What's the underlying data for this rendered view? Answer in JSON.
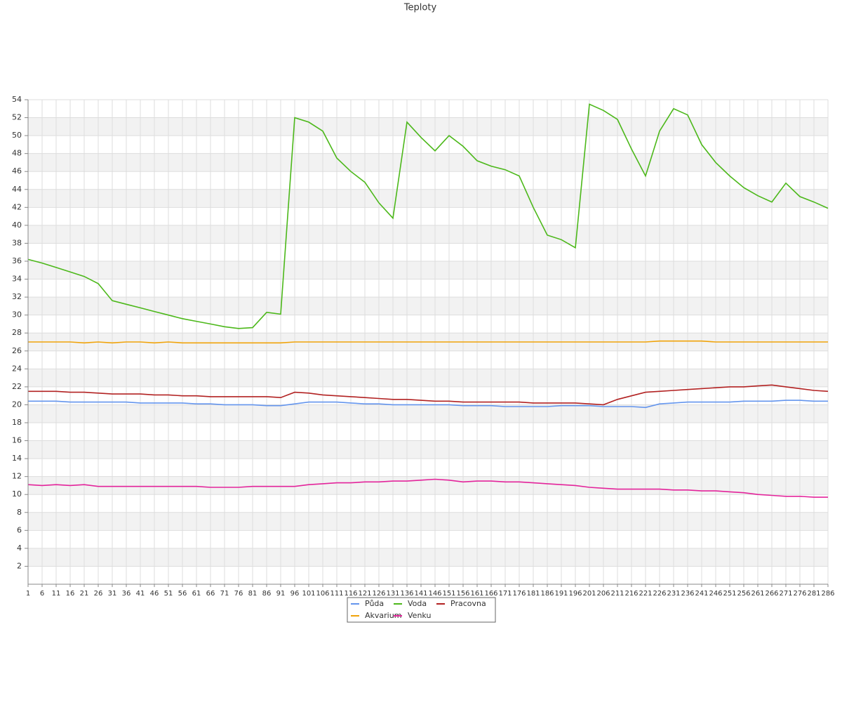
{
  "chart_data": {
    "type": "line",
    "title": "Teploty",
    "x": [
      1,
      6,
      11,
      16,
      21,
      26,
      31,
      36,
      41,
      46,
      51,
      56,
      61,
      66,
      71,
      76,
      81,
      86,
      91,
      96,
      101,
      106,
      111,
      116,
      121,
      126,
      131,
      136,
      141,
      146,
      151,
      156,
      161,
      166,
      171,
      176,
      181,
      186,
      191,
      196,
      201,
      206,
      211,
      216,
      221,
      226,
      231,
      236,
      241,
      246,
      251,
      256,
      261,
      266,
      271,
      276,
      281,
      286
    ],
    "xlim": [
      1,
      286
    ],
    "xticks": [
      1,
      6,
      11,
      16,
      21,
      26,
      31,
      36,
      41,
      46,
      51,
      56,
      61,
      66,
      71,
      76,
      81,
      86,
      91,
      96,
      101,
      106,
      111,
      116,
      121,
      126,
      131,
      136,
      141,
      146,
      151,
      156,
      161,
      166,
      171,
      176,
      181,
      186,
      191,
      196,
      201,
      206,
      211,
      216,
      221,
      226,
      231,
      236,
      241,
      246,
      251,
      256,
      261,
      266,
      271,
      276,
      281,
      286
    ],
    "ylim": [
      0,
      54
    ],
    "yticks": [
      2,
      4,
      6,
      8,
      10,
      12,
      14,
      16,
      18,
      20,
      22,
      24,
      26,
      28,
      30,
      32,
      34,
      36,
      38,
      40,
      42,
      44,
      46,
      48,
      50,
      52,
      54
    ],
    "grid": true,
    "series": [
      {
        "name": "Půda",
        "color": "#6495ed",
        "values": [
          20.4,
          20.4,
          20.4,
          20.3,
          20.3,
          20.3,
          20.3,
          20.3,
          20.2,
          20.2,
          20.2,
          20.2,
          20.1,
          20.1,
          20.0,
          20.0,
          20.0,
          19.9,
          19.9,
          20.1,
          20.3,
          20.3,
          20.3,
          20.2,
          20.1,
          20.1,
          20.0,
          20.0,
          20.0,
          20.0,
          20.0,
          19.9,
          19.9,
          19.9,
          19.8,
          19.8,
          19.8,
          19.8,
          19.9,
          19.9,
          19.9,
          19.8,
          19.8,
          19.8,
          19.7,
          20.1,
          20.2,
          20.3,
          20.3,
          20.3,
          20.3,
          20.4,
          20.4,
          20.4,
          20.5,
          20.5,
          20.4,
          20.4
        ]
      },
      {
        "name": "Voda",
        "color": "#4cb81a",
        "values": [
          36.2,
          35.8,
          35.3,
          34.8,
          34.3,
          33.5,
          31.6,
          31.2,
          30.8,
          30.4,
          30.0,
          29.6,
          29.3,
          29.0,
          28.7,
          28.5,
          28.6,
          30.3,
          30.1,
          52.0,
          51.5,
          50.5,
          47.5,
          46.0,
          44.8,
          42.5,
          40.8,
          51.5,
          49.8,
          48.3,
          50.0,
          48.8,
          47.2,
          46.6,
          46.2,
          45.5,
          42.0,
          38.9,
          38.4,
          37.5,
          53.5,
          52.8,
          51.8,
          48.5,
          45.5,
          50.5,
          53.0,
          52.3,
          49.0,
          47.0,
          45.5,
          44.2,
          43.3,
          42.6,
          44.7,
          43.2,
          42.6,
          41.9
        ]
      },
      {
        "name": "Pracovna",
        "color": "#b22222",
        "values": [
          21.5,
          21.5,
          21.5,
          21.4,
          21.4,
          21.3,
          21.2,
          21.2,
          21.2,
          21.1,
          21.1,
          21.0,
          21.0,
          20.9,
          20.9,
          20.9,
          20.9,
          20.9,
          20.8,
          21.4,
          21.3,
          21.1,
          21.0,
          20.9,
          20.8,
          20.7,
          20.6,
          20.6,
          20.5,
          20.4,
          20.4,
          20.3,
          20.3,
          20.3,
          20.3,
          20.3,
          20.2,
          20.2,
          20.2,
          20.2,
          20.1,
          20.0,
          20.6,
          21.0,
          21.4,
          21.5,
          21.6,
          21.7,
          21.8,
          21.9,
          22.0,
          22.0,
          22.1,
          22.2,
          22.0,
          21.8,
          21.6,
          21.5
        ]
      },
      {
        "name": "Akvarium",
        "color": "#f0a30a",
        "values": [
          27.0,
          27.0,
          27.0,
          27.0,
          26.9,
          27.0,
          26.9,
          27.0,
          27.0,
          26.9,
          27.0,
          26.9,
          26.9,
          26.9,
          26.9,
          26.9,
          26.9,
          26.9,
          26.9,
          27.0,
          27.0,
          27.0,
          27.0,
          27.0,
          27.0,
          27.0,
          27.0,
          27.0,
          27.0,
          27.0,
          27.0,
          27.0,
          27.0,
          27.0,
          27.0,
          27.0,
          27.0,
          27.0,
          27.0,
          27.0,
          27.0,
          27.0,
          27.0,
          27.0,
          27.0,
          27.1,
          27.1,
          27.1,
          27.1,
          27.0,
          27.0,
          27.0,
          27.0,
          27.0,
          27.0,
          27.0,
          27.0,
          27.0
        ]
      },
      {
        "name": "Venku",
        "color": "#e3249b",
        "values": [
          11.1,
          11.0,
          11.1,
          11.0,
          11.1,
          10.9,
          10.9,
          10.9,
          10.9,
          10.9,
          10.9,
          10.9,
          10.9,
          10.8,
          10.8,
          10.8,
          10.9,
          10.9,
          10.9,
          10.9,
          11.1,
          11.2,
          11.3,
          11.3,
          11.4,
          11.4,
          11.5,
          11.5,
          11.6,
          11.7,
          11.6,
          11.4,
          11.5,
          11.5,
          11.4,
          11.4,
          11.3,
          11.2,
          11.1,
          11.0,
          10.8,
          10.7,
          10.6,
          10.6,
          10.6,
          10.6,
          10.5,
          10.5,
          10.4,
          10.4,
          10.3,
          10.2,
          10.0,
          9.9,
          9.8,
          9.8,
          9.7,
          9.7
        ]
      }
    ]
  }
}
